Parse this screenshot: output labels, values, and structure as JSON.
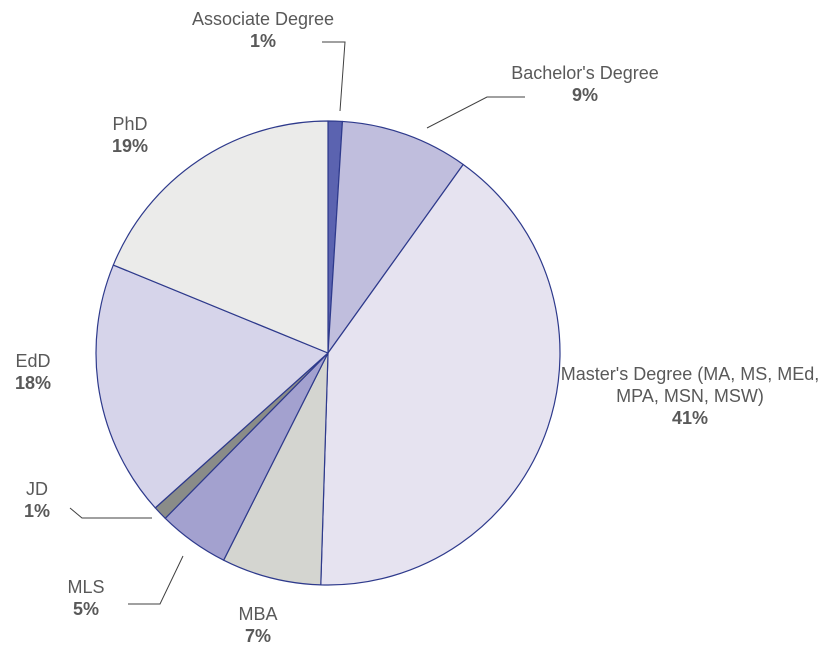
{
  "chart_data": {
    "type": "pie",
    "categories": [
      "Associate Degree",
      "Bachelor's Degree",
      "Master's Degree (MA, MS, MEd, MPA, MSN, MSW)",
      "MBA",
      "MLS",
      "JD",
      "EdD",
      "PhD"
    ],
    "values": [
      1,
      9,
      41,
      7,
      5,
      1,
      18,
      19
    ],
    "value_labels": [
      "1%",
      "9%",
      "41%",
      "7%",
      "5%",
      "1%",
      "18%",
      "19%"
    ],
    "colors": [
      "#5b63b0",
      "#c0bedd",
      "#e6e3f0",
      "#d4d5d0",
      "#a3a1cf",
      "#8a8c88",
      "#d6d4ea",
      "#ebebea"
    ]
  }
}
